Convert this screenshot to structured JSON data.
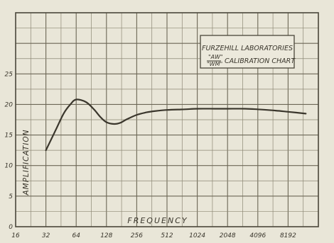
{
  "chart_data": {
    "type": "line",
    "xlabel": "FREQUENCY",
    "ylabel": "AMPLIFICATION",
    "x_scale": "log2",
    "x_ticks": [
      "16",
      "32",
      "64",
      "128",
      "256",
      "512",
      "1024",
      "2048",
      "4096",
      "8192"
    ],
    "x_tick_values": [
      16,
      32,
      64,
      128,
      256,
      512,
      1024,
      2048,
      4096,
      8192
    ],
    "xlim": [
      16,
      16384
    ],
    "y_ticks": [
      "0",
      "5",
      "10",
      "15",
      "20",
      "25"
    ],
    "y_tick_values": [
      0,
      5,
      10,
      15,
      20,
      25
    ],
    "ylim": [
      0,
      35
    ],
    "grid": true,
    "annotation": {
      "line1": "FURZEHILL LABORATORIES",
      "line2_a": "\"AW\"",
      "line2_b": "\"WM\"",
      "line2_c": "CALIBRATION CHART"
    },
    "series": [
      {
        "x": [
          32,
          40,
          48,
          56,
          64,
          80,
          96,
          112,
          128,
          152,
          176,
          200,
          256,
          320,
          384,
          512,
          768,
          1024,
          1536,
          2048,
          3072,
          4096,
          6144,
          8192,
          12288
        ],
        "y": [
          12.5,
          15.8,
          18.5,
          20.0,
          20.8,
          20.4,
          19.2,
          17.9,
          17.1,
          16.8,
          17.0,
          17.5,
          18.3,
          18.7,
          18.9,
          19.1,
          19.2,
          19.3,
          19.3,
          19.3,
          19.3,
          19.2,
          19.0,
          18.8,
          18.5
        ]
      }
    ]
  }
}
